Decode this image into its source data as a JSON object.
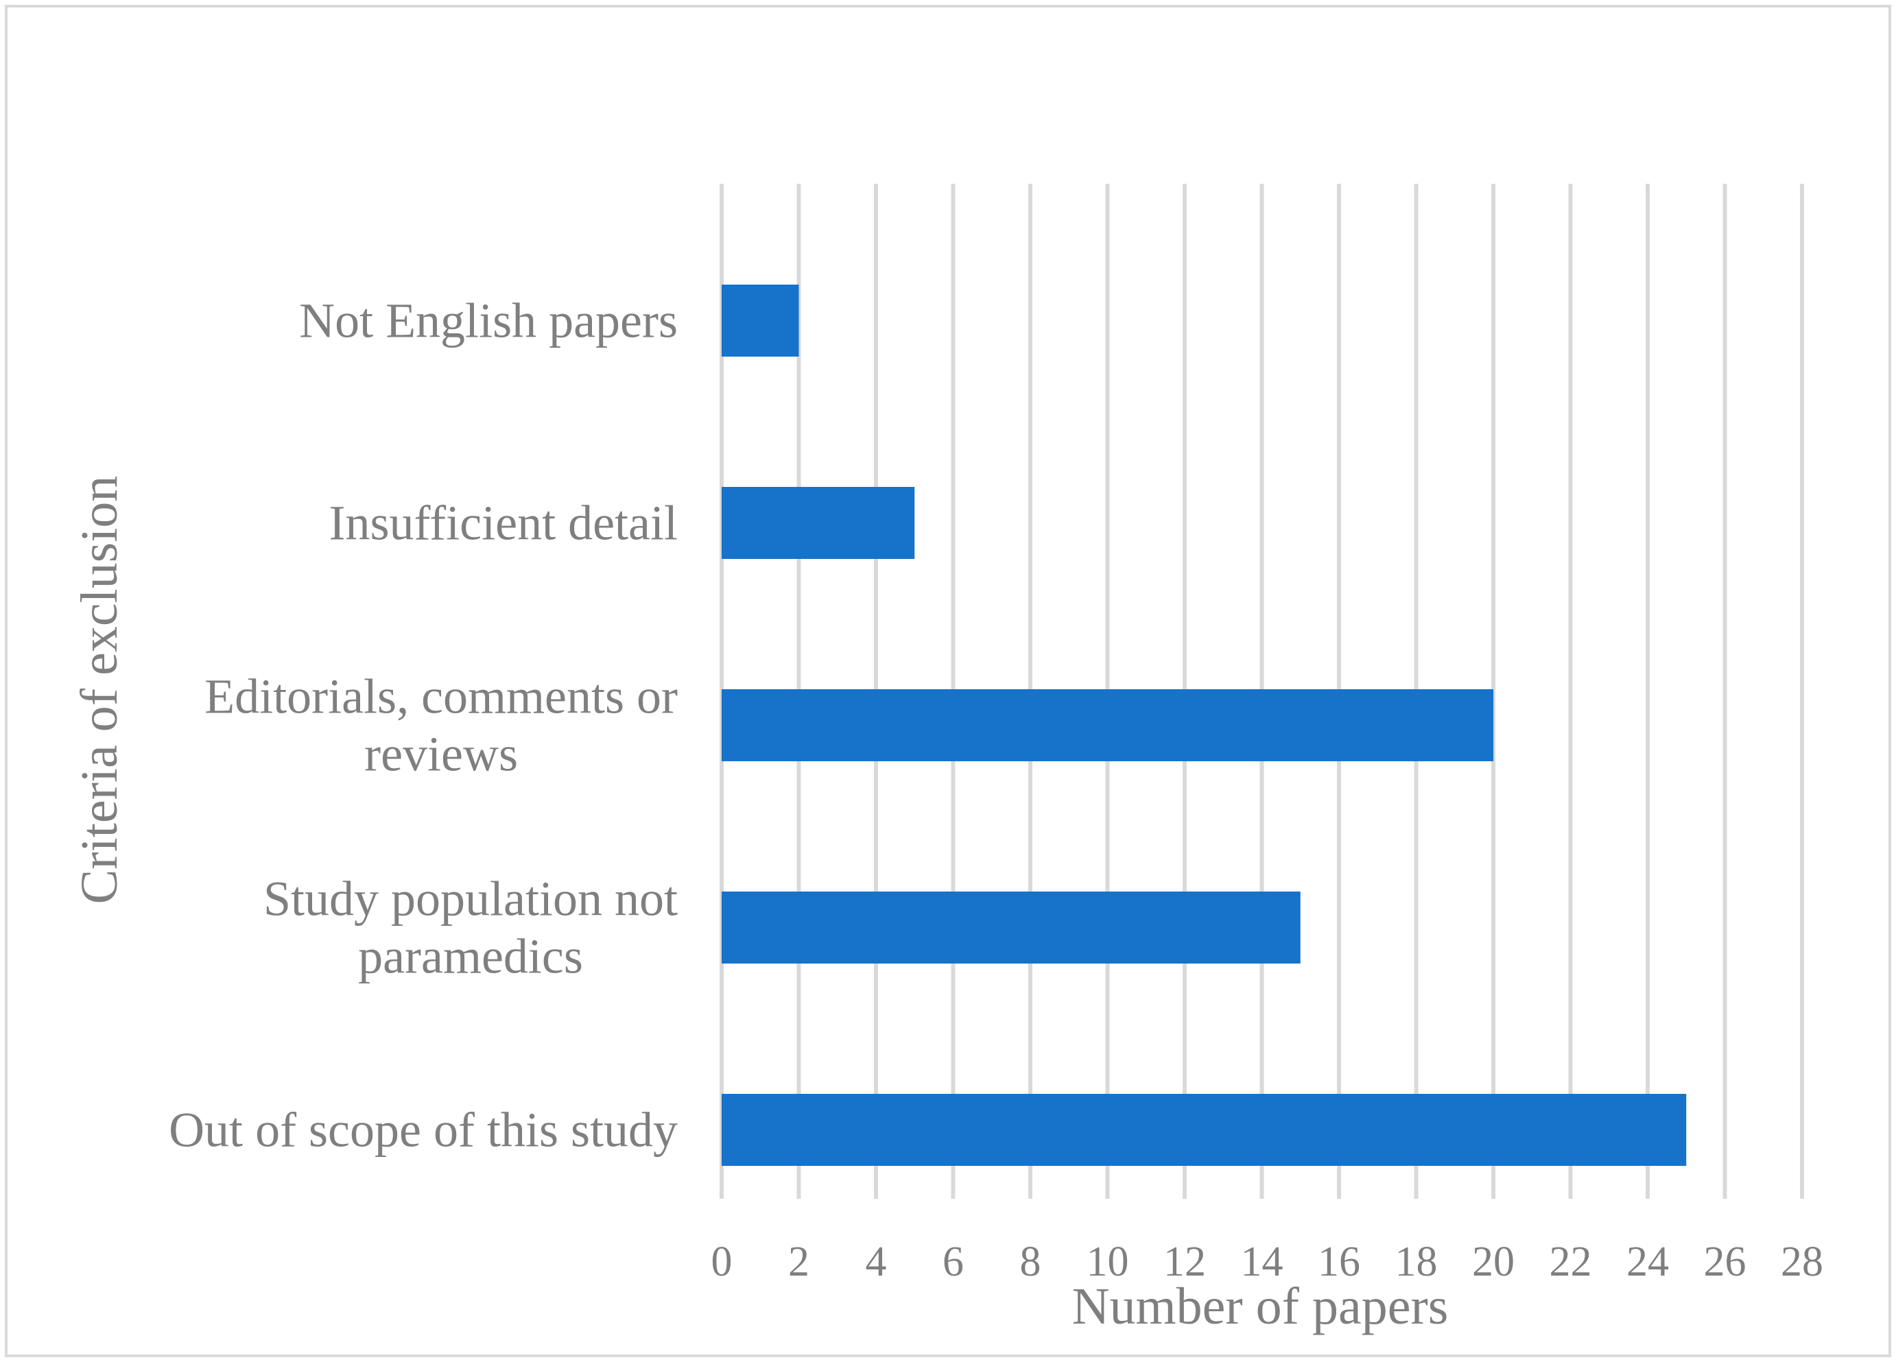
{
  "chart_data": {
    "type": "bar",
    "orientation": "horizontal",
    "categories": [
      "Not English papers",
      "Insufficient detail",
      "Editorials, comments or reviews",
      "Study population not paramedics",
      "Out of scope of this study"
    ],
    "category_lines": [
      [
        "Not English papers"
      ],
      [
        "Insufficient detail"
      ],
      [
        "Editorials, comments or",
        "reviews"
      ],
      [
        "Study population not",
        "paramedics"
      ],
      [
        "Out of scope of this study"
      ]
    ],
    "values": [
      2,
      5,
      20,
      15,
      25
    ],
    "xlabel": "Number of papers",
    "ylabel": "Criteria of exclusion",
    "xlim": [
      0,
      28
    ],
    "xticks": [
      0,
      2,
      4,
      6,
      8,
      10,
      12,
      14,
      16,
      18,
      20,
      22,
      24,
      26,
      28
    ],
    "grid": "vertical",
    "bar_color": "#1772c9",
    "grid_color": "#d9d9d9",
    "text_color": "#7f7f7f",
    "legend": "none"
  }
}
